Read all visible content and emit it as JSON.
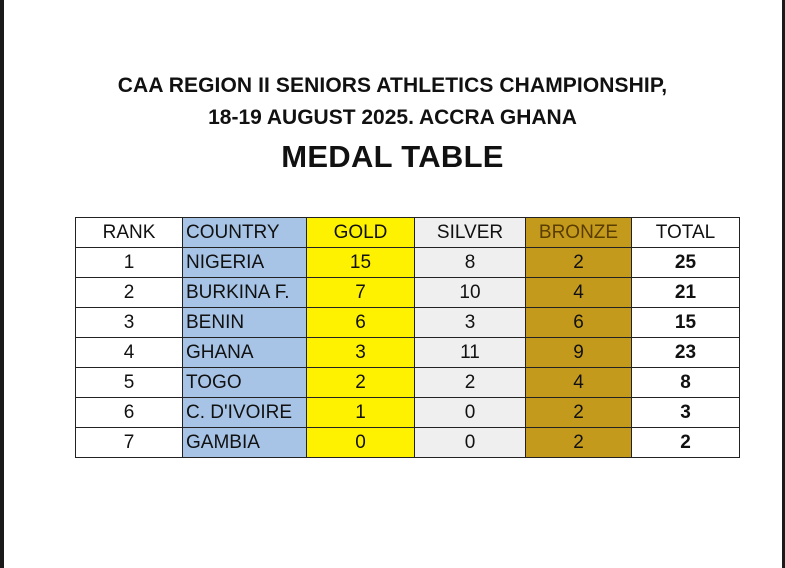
{
  "header": {
    "line1": "CAA REGION II SENIORS ATHLETICS CHAMPIONSHIP,",
    "line2": "18-19 AUGUST 2025. ACCRA GHANA",
    "title": "MEDAL TABLE"
  },
  "table": {
    "columns": [
      "RANK",
      "COUNTRY",
      "GOLD",
      "SILVER",
      "BRONZE",
      "TOTAL"
    ],
    "rows": [
      [
        "1",
        "NIGERIA",
        "15",
        "8",
        "2",
        "25"
      ],
      [
        "2",
        "BURKINA F.",
        "7",
        "10",
        "4",
        "21"
      ],
      [
        "3",
        "BENIN",
        "6",
        "3",
        "6",
        "15"
      ],
      [
        "4",
        "GHANA",
        "3",
        "11",
        "9",
        "23"
      ],
      [
        "5",
        "TOGO",
        "2",
        "2",
        "4",
        "8"
      ],
      [
        "6",
        "C. D'IVOIRE",
        "1",
        "0",
        "2",
        "3"
      ],
      [
        "7",
        "GAMBIA",
        "0",
        "0",
        "2",
        "2"
      ]
    ]
  },
  "colors": {
    "country": "#a7c4e6",
    "gold": "#fff200",
    "silver": "#efefef",
    "bronze": "#c49a1c"
  }
}
